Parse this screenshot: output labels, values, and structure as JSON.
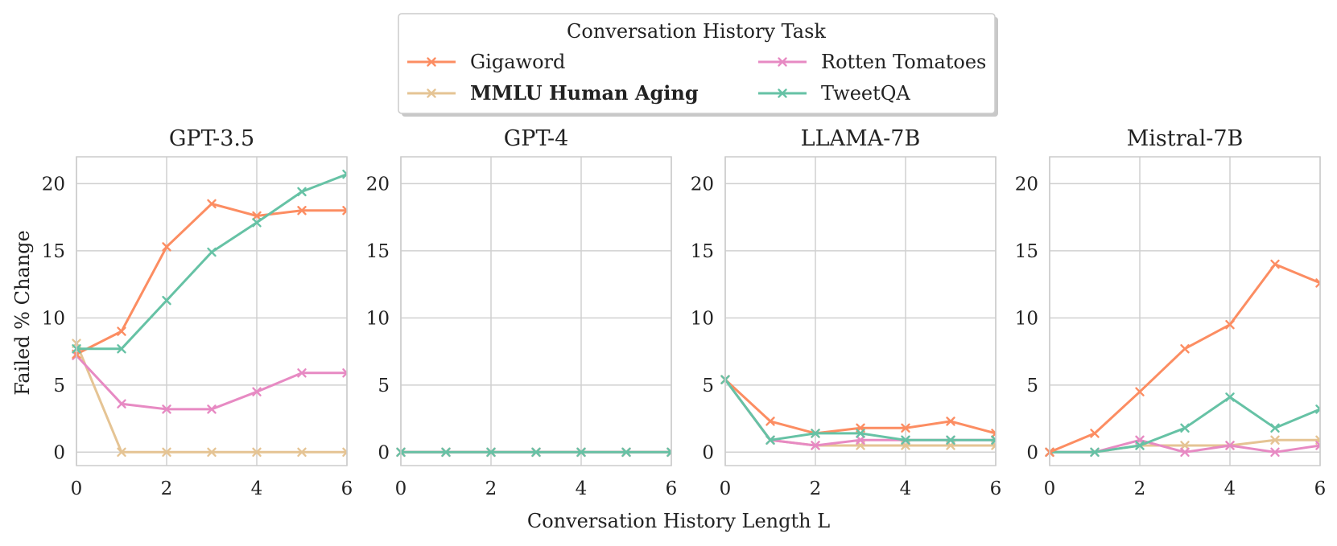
{
  "chart_data": {
    "type": "line",
    "xlabel": "Conversation History Length L",
    "ylabel": "Failed % Change",
    "legend": {
      "title": "Conversation History Task",
      "placement": "top-center",
      "entries": [
        {
          "name": "Gigaword",
          "color": "#fc8d62",
          "bold": false
        },
        {
          "name": "Rotten Tomatoes",
          "color": "#e78ac3",
          "bold": false
        },
        {
          "name": "MMLU Human Aging",
          "color": "#e5c494",
          "bold": true
        },
        {
          "name": "TweetQA",
          "color": "#66c2a5",
          "bold": false
        }
      ]
    },
    "x": [
      0,
      1,
      2,
      3,
      4,
      5,
      6
    ],
    "xlim": [
      0,
      6
    ],
    "ylim": [
      -1,
      22
    ],
    "xticks": [
      "0",
      "2",
      "4",
      "6"
    ],
    "yticks": [
      "0",
      "5",
      "10",
      "15",
      "20"
    ],
    "grid": true,
    "panels": [
      {
        "title": "GPT-3.5",
        "series": [
          {
            "name": "MMLU Human Aging",
            "values": [
              8.1,
              0,
              0,
              0,
              0,
              0,
              0
            ]
          },
          {
            "name": "Rotten Tomatoes",
            "values": [
              7.2,
              3.6,
              3.2,
              3.2,
              4.5,
              5.9,
              5.9
            ]
          },
          {
            "name": "Gigaword",
            "values": [
              7.3,
              9.0,
              15.3,
              18.5,
              17.6,
              18.0,
              18.0
            ]
          },
          {
            "name": "TweetQA",
            "values": [
              7.7,
              7.7,
              11.3,
              14.9,
              17.1,
              19.4,
              20.7
            ]
          }
        ]
      },
      {
        "title": "GPT-4",
        "series": [
          {
            "name": "MMLU Human Aging",
            "values": [
              0,
              0,
              0,
              0,
              0,
              0,
              0
            ]
          },
          {
            "name": "Gigaword",
            "values": [
              0,
              0,
              0,
              0,
              0,
              0,
              0
            ]
          },
          {
            "name": "Rotten Tomatoes",
            "values": [
              0,
              0,
              0,
              0,
              0,
              0,
              0
            ]
          },
          {
            "name": "TweetQA",
            "values": [
              0,
              0,
              0,
              0,
              0,
              0,
              0
            ]
          }
        ]
      },
      {
        "title": "LLAMA-7B",
        "series": [
          {
            "name": "MMLU Human Aging",
            "values": [
              5.4,
              0.9,
              0.5,
              0.5,
              0.5,
              0.5,
              0.5
            ]
          },
          {
            "name": "Rotten Tomatoes",
            "values": [
              5.4,
              0.9,
              0.5,
              0.9,
              0.9,
              0.9,
              0.9
            ]
          },
          {
            "name": "Gigaword",
            "values": [
              5.4,
              2.3,
              1.4,
              1.8,
              1.8,
              2.3,
              1.4
            ]
          },
          {
            "name": "TweetQA",
            "values": [
              5.4,
              0.9,
              1.4,
              1.4,
              0.9,
              0.9,
              0.9
            ]
          }
        ]
      },
      {
        "title": "Mistral-7B",
        "series": [
          {
            "name": "MMLU Human Aging",
            "values": [
              0,
              0,
              0.5,
              0.5,
              0.5,
              0.9,
              0.9
            ]
          },
          {
            "name": "Rotten Tomatoes",
            "values": [
              0,
              0,
              0.9,
              0,
              0.5,
              0,
              0.5
            ]
          },
          {
            "name": "TweetQA",
            "values": [
              0,
              0,
              0.5,
              1.8,
              4.1,
              1.8,
              3.2
            ]
          },
          {
            "name": "Gigaword",
            "values": [
              0,
              1.4,
              4.5,
              7.7,
              9.5,
              14.0,
              12.6
            ]
          }
        ]
      }
    ]
  }
}
